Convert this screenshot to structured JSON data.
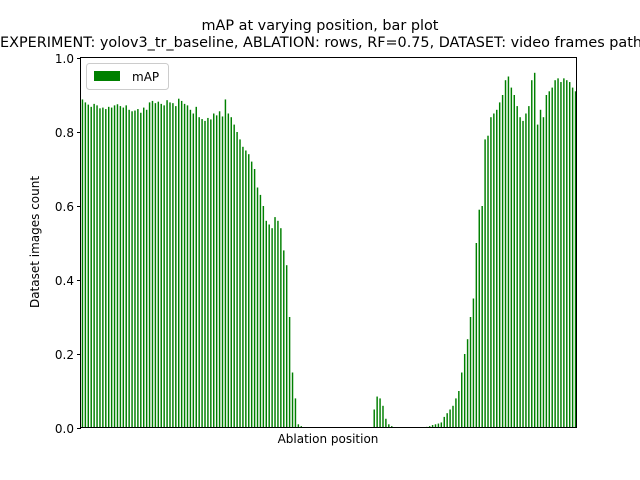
{
  "chart_data": {
    "type": "bar",
    "title": "mAP at varying position, bar plot",
    "subtitle": "EXPERIMENT: yolov3_tr_baseline, ABLATION: rows, RF=0.75, DATASET: video frames path",
    "xlabel": "Ablation position",
    "ylabel": "Dataset images count",
    "ylim": [
      0,
      1.0
    ],
    "yticks": [
      "0.0",
      "0.2",
      "0.4",
      "0.6",
      "0.8",
      "1.0"
    ],
    "grid": false,
    "legend_position": "top-left",
    "series": [
      {
        "name": "mAP",
        "color": "#008000",
        "values": [
          0.888,
          0.88,
          0.874,
          0.868,
          0.876,
          0.872,
          0.864,
          0.866,
          0.862,
          0.868,
          0.866,
          0.872,
          0.875,
          0.87,
          0.866,
          0.872,
          0.86,
          0.856,
          0.858,
          0.862,
          0.852,
          0.866,
          0.86,
          0.88,
          0.884,
          0.878,
          0.882,
          0.876,
          0.872,
          0.886,
          0.88,
          0.878,
          0.87,
          0.89,
          0.884,
          0.876,
          0.872,
          0.86,
          0.85,
          0.868,
          0.84,
          0.835,
          0.83,
          0.838,
          0.834,
          0.85,
          0.845,
          0.856,
          0.842,
          0.888,
          0.85,
          0.84,
          0.82,
          0.8,
          0.78,
          0.76,
          0.75,
          0.74,
          0.72,
          0.7,
          0.65,
          0.63,
          0.6,
          0.56,
          0.55,
          0.54,
          0.57,
          0.56,
          0.54,
          0.48,
          0.44,
          0.3,
          0.15,
          0.08,
          0.01,
          0.005,
          0.0,
          0.0,
          0.0,
          0.0,
          0.0,
          0.0,
          0.0,
          0.0,
          0.0,
          0.0,
          0.0,
          0.0,
          0.0,
          0.0,
          0.0,
          0.0,
          0.0,
          0.0,
          0.0,
          0.0,
          0.0,
          0.0,
          0.0,
          0.0,
          0.05,
          0.085,
          0.08,
          0.06,
          0.025,
          0.01,
          0.005,
          0.0,
          0.0,
          0.0,
          0.0,
          0.0,
          0.0,
          0.0,
          0.0,
          0.0,
          0.0,
          0.0,
          0.003,
          0.005,
          0.008,
          0.01,
          0.012,
          0.015,
          0.03,
          0.04,
          0.05,
          0.06,
          0.08,
          0.1,
          0.15,
          0.2,
          0.24,
          0.3,
          0.35,
          0.5,
          0.59,
          0.6,
          0.78,
          0.79,
          0.84,
          0.85,
          0.86,
          0.88,
          0.9,
          0.94,
          0.95,
          0.92,
          0.9,
          0.87,
          0.84,
          0.83,
          0.85,
          0.87,
          0.94,
          0.96,
          0.82,
          0.86,
          0.84,
          0.9,
          0.91,
          0.92,
          0.94,
          0.945,
          0.935,
          0.945,
          0.94,
          0.935,
          0.92,
          0.91
        ]
      }
    ]
  }
}
